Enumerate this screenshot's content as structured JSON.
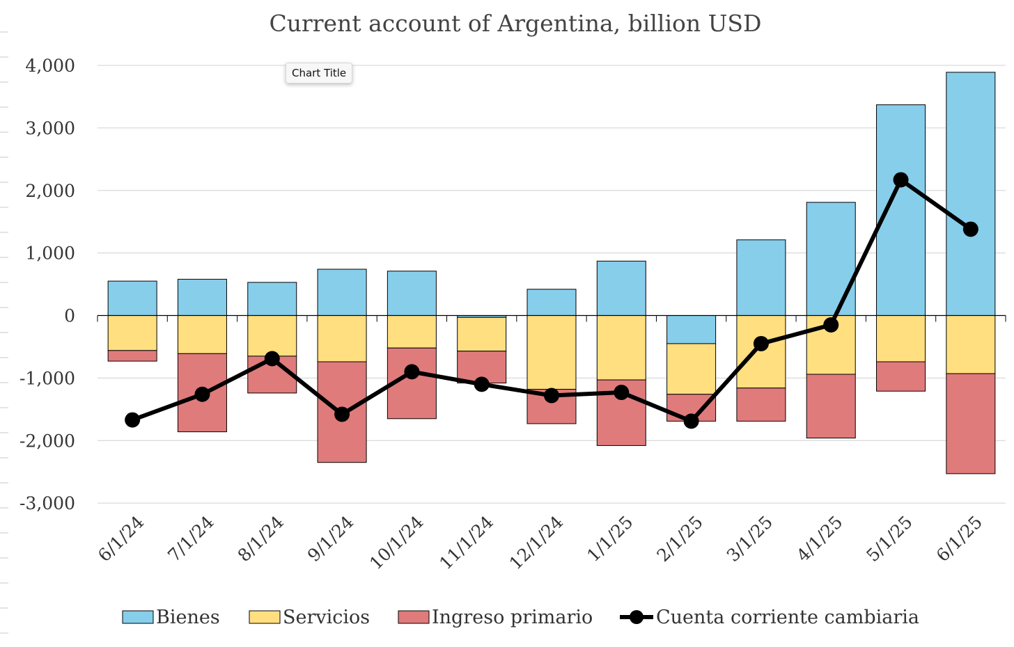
{
  "tooltip": {
    "text": "Chart Title"
  },
  "chart_data": {
    "type": "bar",
    "stacked": true,
    "title": "Current account of Argentina, billion USD",
    "xlabel": "",
    "ylabel": "",
    "ylim": [
      -3000,
      4000
    ],
    "yticks": [
      -3000,
      -2000,
      -1000,
      0,
      1000,
      2000,
      3000,
      4000
    ],
    "ytick_labels": [
      "-3,000",
      "-2,000",
      "-1,000",
      "0",
      "1,000",
      "2,000",
      "3,000",
      "4,000"
    ],
    "grid": true,
    "legend_position": "bottom",
    "categories": [
      "6/1/24",
      "7/1/24",
      "8/1/24",
      "9/1/24",
      "10/1/24",
      "11/1/24",
      "12/1/24",
      "1/1/25",
      "2/1/25",
      "3/1/25",
      "4/1/25",
      "5/1/25",
      "6/1/25"
    ],
    "series": [
      {
        "name": "Bienes",
        "kind": "bar",
        "color": "#87CEEB",
        "values": [
          550,
          580,
          530,
          740,
          710,
          -30,
          420,
          870,
          -450,
          1210,
          1810,
          3370,
          3890
        ]
      },
      {
        "name": "Servicios",
        "kind": "bar",
        "color": "#FFDF80",
        "values": [
          -560,
          -610,
          -650,
          -740,
          -520,
          -540,
          -1180,
          -1030,
          -810,
          -1160,
          -940,
          -740,
          -930
        ]
      },
      {
        "name": "Ingreso primario",
        "kind": "bar",
        "color": "#E07B7B",
        "values": [
          -170,
          -1250,
          -590,
          -1610,
          -1130,
          -510,
          -550,
          -1050,
          -430,
          -530,
          -1020,
          -470,
          -1600
        ]
      },
      {
        "name": "Cuenta corriente cambiaria",
        "kind": "line",
        "color": "#000000",
        "values": [
          -1670,
          -1260,
          -690,
          -1580,
          -900,
          -1100,
          -1280,
          -1230,
          -1690,
          -450,
          -150,
          2170,
          1380
        ]
      }
    ]
  }
}
